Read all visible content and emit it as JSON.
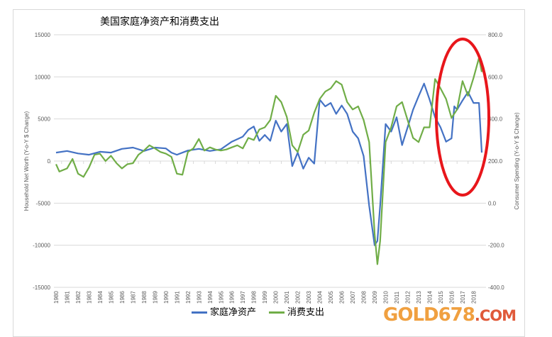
{
  "chart_data": {
    "type": "line",
    "title": "美国家庭净资产和消费支出",
    "ylabel": "Household Net Worth (Y-o-Y $ Change)",
    "y2label": "Consumer Spending (Y-o-Y $ Change)",
    "ylim": [
      -15000,
      15000
    ],
    "y2lim": [
      -400,
      800
    ],
    "yticks": [
      "15000",
      "10000",
      "5000",
      "0",
      "-5000",
      "-10000",
      "-15000"
    ],
    "y2ticks": [
      "800.0",
      "600.0",
      "400.0",
      "200.0",
      "0.0",
      "-200.0",
      "-400.0"
    ],
    "xticks": [
      "1980",
      "1981",
      "1982",
      "1983",
      "1984",
      "1985",
      "1986",
      "1987",
      "1988",
      "1989",
      "1990",
      "1991",
      "1992",
      "1993",
      "1994",
      "1995",
      "1996",
      "1997",
      "1998",
      "1999",
      "2000",
      "2001",
      "2002",
      "2003",
      "2004",
      "2005",
      "2006",
      "2007",
      "2008",
      "2009",
      "2010",
      "2011",
      "2012",
      "2013",
      "2014",
      "2015",
      "2016",
      "2017",
      "2018"
    ],
    "xlim": [
      1980,
      2018.75
    ],
    "grid": true,
    "legend_position": "bottom",
    "series": [
      {
        "name": "家庭净资产",
        "axis": "left",
        "color": "#4472c4",
        "x": [
          1980,
          1981,
          1982,
          1983,
          1984,
          1985,
          1986,
          1987,
          1988,
          1989,
          1990,
          1990.5,
          1991,
          1992,
          1993,
          1994,
          1995,
          1996,
          1997,
          1997.5,
          1998,
          1998.5,
          1999,
          1999.5,
          2000,
          2000.5,
          2001,
          2001.5,
          2002,
          2002.5,
          2003,
          2003.5,
          2004,
          2004.5,
          2005,
          2005.5,
          2006,
          2006.5,
          2007,
          2007.5,
          2008,
          2008.5,
          2009,
          2009.25,
          2009.5,
          2010,
          2010.5,
          2011,
          2011.5,
          2012,
          2012.5,
          2013,
          2013.5,
          2014,
          2014.5,
          2015,
          2015.5,
          2016,
          2016.25,
          2016.5,
          2017,
          2017.5,
          2018,
          2018.5,
          2018.75
        ],
        "y": [
          1000,
          1200,
          900,
          750,
          1100,
          1000,
          1450,
          1600,
          1200,
          1600,
          1500,
          1000,
          750,
          1250,
          1450,
          1200,
          1400,
          2300,
          2900,
          3700,
          4100,
          2400,
          3100,
          2400,
          4800,
          3500,
          4400,
          -600,
          1000,
          -900,
          400,
          -300,
          7300,
          6500,
          6900,
          5600,
          6600,
          5600,
          3500,
          2700,
          600,
          -5300,
          -10000,
          -9500,
          -5300,
          4400,
          3500,
          5200,
          1900,
          4000,
          6100,
          7700,
          9200,
          7300,
          5200,
          4000,
          2300,
          2700,
          6500,
          6100,
          7200,
          8200,
          6900,
          6900,
          1000
        ]
      },
      {
        "name": "消费支出",
        "axis": "right",
        "color": "#70ad47",
        "x": [
          1980,
          1980.3,
          1981,
          1981.5,
          1982,
          1982.5,
          1983,
          1983.5,
          1984,
          1984.5,
          1985,
          1985.5,
          1986,
          1986.5,
          1987,
          1987.5,
          1988,
          1988.5,
          1989,
          1989.5,
          1990,
          1990.5,
          1991,
          1991.5,
          1992,
          1992.5,
          1993,
          1993.5,
          1994,
          1994.5,
          1995,
          1995.5,
          1996,
          1996.5,
          1997,
          1997.5,
          1998,
          1998.5,
          1999,
          1999.5,
          2000,
          2000.5,
          2001,
          2001.5,
          2002,
          2002.5,
          2003,
          2003.5,
          2004,
          2004.5,
          2005,
          2005.5,
          2006,
          2006.5,
          2007,
          2007.5,
          2008,
          2008.5,
          2009,
          2009.25,
          2009.5,
          2010,
          2010.5,
          2011,
          2011.5,
          2012,
          2012.5,
          2013,
          2013.5,
          2014,
          2014.5,
          2015,
          2015.5,
          2016,
          2016.5,
          2017,
          2017.5,
          2018,
          2018.5,
          2018.75
        ],
        "y": [
          185,
          150,
          165,
          210,
          140,
          125,
          170,
          230,
          235,
          200,
          225,
          190,
          165,
          185,
          190,
          230,
          250,
          275,
          260,
          243,
          235,
          220,
          140,
          135,
          243,
          260,
          305,
          250,
          265,
          255,
          250,
          255,
          265,
          275,
          260,
          310,
          300,
          350,
          360,
          395,
          510,
          480,
          410,
          275,
          243,
          325,
          345,
          430,
          495,
          530,
          545,
          580,
          563,
          480,
          445,
          460,
          395,
          290,
          -145,
          -290,
          -180,
          290,
          360,
          460,
          480,
          395,
          310,
          290,
          360,
          360,
          590,
          545,
          495,
          405,
          445,
          580,
          510,
          595,
          690,
          623
        ]
      }
    ]
  },
  "legend": [
    "家庭净资产",
    "消费支出"
  ],
  "watermark": {
    "main": "GOLD678",
    "suffix": ".COM",
    "main_color": "#f0a040",
    "suffix_color": "#e05a3a"
  },
  "annotation": {
    "type": "red-ellipse",
    "color": "#e8161b"
  }
}
